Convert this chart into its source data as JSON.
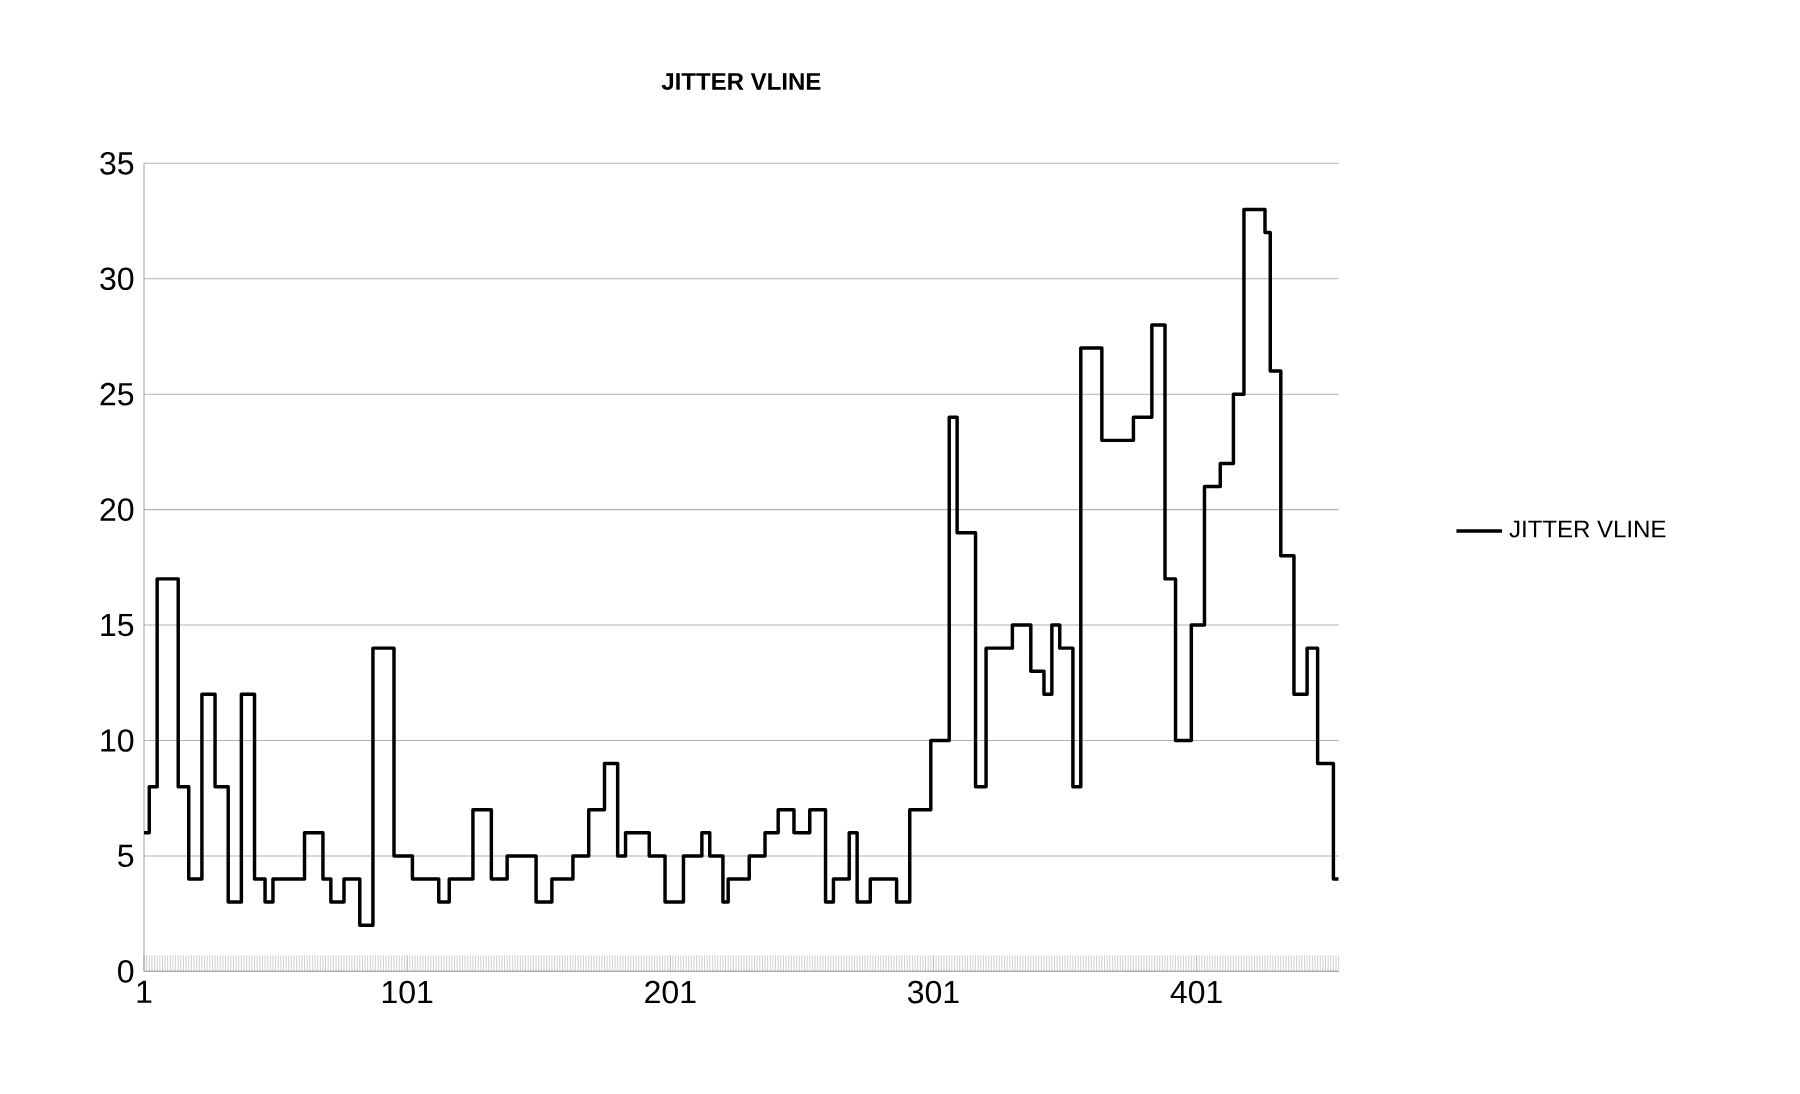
{
  "chart_data": {
    "type": "step",
    "title": "JITTER VLINE",
    "x": [
      1,
      3,
      6,
      14,
      18,
      23,
      28,
      33,
      38,
      43,
      47,
      50,
      62,
      69,
      72,
      77,
      83,
      88,
      96,
      103,
      113,
      117,
      126,
      133,
      139,
      150,
      156,
      164,
      170,
      176,
      181,
      184,
      193,
      199,
      206,
      213,
      216,
      221,
      223,
      231,
      237,
      242,
      248,
      254,
      260,
      263,
      269,
      272,
      277,
      287,
      292,
      300,
      307,
      310,
      317,
      321,
      331,
      338,
      343,
      346,
      349,
      354,
      357,
      365,
      377,
      384,
      389,
      393,
      399,
      404,
      410,
      415,
      419,
      427,
      429,
      433,
      438,
      443,
      447,
      453,
      455
    ],
    "series": [
      {
        "name": "JITTER VLINE",
        "color": "#000000",
        "values": [
          6,
          8,
          17,
          8,
          4,
          12,
          8,
          3,
          12,
          4,
          3,
          4,
          6,
          4,
          3,
          4,
          2,
          14,
          5,
          4,
          3,
          4,
          7,
          4,
          5,
          3,
          4,
          5,
          7,
          9,
          5,
          6,
          5,
          3,
          5,
          6,
          5,
          3,
          4,
          5,
          6,
          7,
          6,
          7,
          3,
          4,
          6,
          3,
          4,
          3,
          7,
          10,
          24,
          19,
          8,
          14,
          15,
          13,
          12,
          15,
          14,
          8,
          27,
          23,
          24,
          28,
          17,
          10,
          15,
          21,
          22,
          25,
          33,
          32,
          26,
          18,
          12,
          14,
          9,
          4,
          4
        ]
      }
    ],
    "xlim": [
      1,
      455
    ],
    "xticks": [
      1,
      101,
      201,
      301,
      401
    ],
    "ylim": [
      0,
      35
    ],
    "yticks": [
      0,
      5,
      10,
      15,
      20,
      25,
      30,
      35
    ],
    "grid": "y",
    "legend": "right",
    "line_style": "solid",
    "marker": "none"
  }
}
